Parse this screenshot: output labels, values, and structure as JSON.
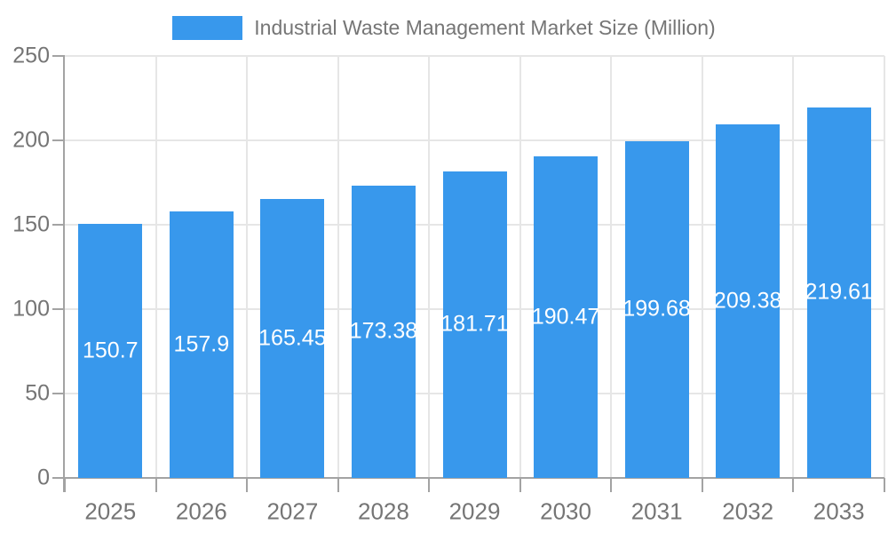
{
  "legend": {
    "label": "Industrial Waste Management Market Size (Million)",
    "swatch_color": "#3898EC"
  },
  "chart_data": {
    "type": "bar",
    "title": "Industrial Waste Management Market Size (Million)",
    "xlabel": "",
    "ylabel": "",
    "categories": [
      "2025",
      "2026",
      "2027",
      "2028",
      "2029",
      "2030",
      "2031",
      "2032",
      "2033"
    ],
    "series": [
      {
        "name": "Industrial Waste Management Market Size (Million)",
        "values": [
          150.7,
          157.9,
          165.45,
          173.38,
          181.71,
          190.47,
          199.68,
          209.38,
          219.61
        ]
      }
    ],
    "value_labels": [
      "150.7",
      "157.9",
      "165.45",
      "173.38",
      "181.71",
      "190.47",
      "199.68",
      "209.38",
      "219.61"
    ],
    "ylim": [
      0,
      250
    ],
    "yticks": [
      0,
      50,
      100,
      150,
      200,
      250
    ],
    "grid": true,
    "legend_position": "top",
    "colors": {
      "bar": "#3898EC",
      "gridline": "#e6e6e6",
      "axis": "#a3a3a3",
      "tick_label": "#757575",
      "value_label": "#ffffff"
    }
  }
}
